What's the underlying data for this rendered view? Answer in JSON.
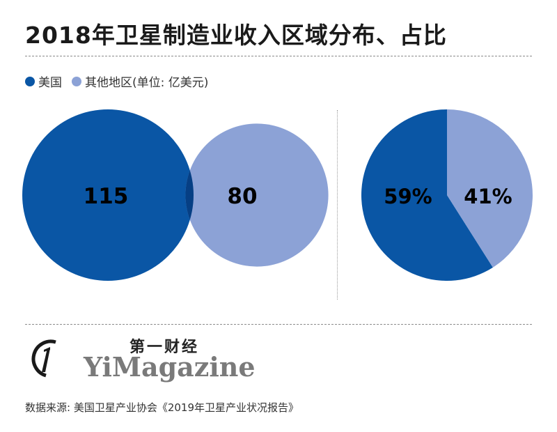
{
  "title": "2018年卫星制造业收入区域分布、占比",
  "legend": {
    "items": [
      {
        "label": "美国",
        "color": "#0a56a5"
      },
      {
        "label": "其他地区",
        "color": "#8ca2d6"
      }
    ],
    "unit_note": "(单位: 亿美元)"
  },
  "chart_data": [
    {
      "type": "venn",
      "categories": [
        "美国",
        "其他地区"
      ],
      "values": [
        115,
        80
      ],
      "labels": [
        "115",
        "80"
      ],
      "unit": "亿美元",
      "colors": {
        "美国": "#0a56a5",
        "其他地区": "#8ca2d6",
        "overlap": "#063f84"
      }
    },
    {
      "type": "pie",
      "categories": [
        "美国",
        "其他地区"
      ],
      "values": [
        59,
        41
      ],
      "labels": [
        "59%",
        "41%"
      ],
      "colors": {
        "美国": "#0a56a5",
        "其他地区": "#8ca2d6"
      }
    }
  ],
  "brand": {
    "cn": "第一财经",
    "en": "YiMagazine"
  },
  "source": "数据来源: 美国卫星产业协会《2019年卫星产业状况报告》"
}
